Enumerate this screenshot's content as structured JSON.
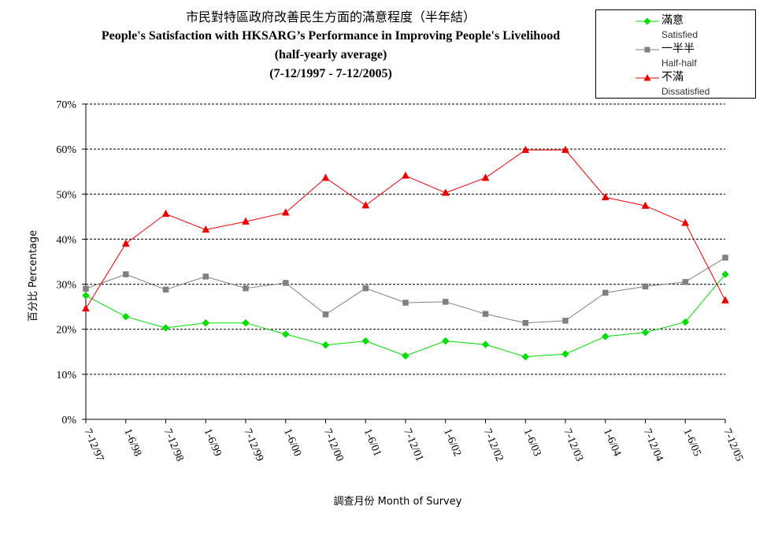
{
  "title": {
    "zh": "市民對特區政府改善民生方面的滿意程度（半年結）",
    "en_line1": "People's Satisfaction with HKSARG’s Performance in Improving People's Livelihood",
    "en_line2": "(half-yearly average)",
    "en_line3": "(7-12/1997 - 7-12/2005)"
  },
  "chart_data": {
    "type": "line",
    "categories": [
      "7-12/97",
      "1-6/98",
      "7-12/98",
      "1-6/99",
      "7-12/99",
      "1-6/00",
      "7-12/00",
      "1-6/01",
      "7-12/01",
      "1-6/02",
      "7-12/02",
      "1-6/03",
      "7-12/03",
      "1-6/04",
      "7-12/04",
      "1-6/05",
      "7-12/05"
    ],
    "series": [
      {
        "name_zh": "滿意",
        "name": "Satisfied",
        "color": "#00dd00",
        "marker": "diamond",
        "values": [
          27.5,
          22.8,
          20.3,
          21.4,
          21.4,
          18.9,
          16.5,
          17.4,
          14.1,
          17.4,
          16.6,
          13.9,
          14.5,
          18.4,
          19.3,
          21.6,
          32.2
        ]
      },
      {
        "name_zh": "一半半",
        "name": "Half-half",
        "color": "#808080",
        "marker": "square",
        "values": [
          29.0,
          32.2,
          28.8,
          31.7,
          29.1,
          30.3,
          23.3,
          29.1,
          25.9,
          26.1,
          23.4,
          21.4,
          21.9,
          28.1,
          29.5,
          30.5,
          35.9
        ]
      },
      {
        "name_zh": "不滿",
        "name": "Dissatisfied",
        "color": "#ee0000",
        "marker": "triangle",
        "values": [
          24.6,
          39.0,
          45.6,
          42.1,
          43.9,
          45.9,
          53.6,
          47.5,
          54.1,
          50.3,
          53.6,
          59.8,
          59.8,
          49.3,
          47.4,
          43.6,
          26.4
        ]
      }
    ],
    "ylim": [
      0,
      70
    ],
    "yticks": [
      0,
      10,
      20,
      30,
      40,
      50,
      60,
      70
    ],
    "ytick_labels": [
      "0%",
      "10%",
      "20%",
      "30%",
      "40%",
      "50%",
      "60%",
      "70%"
    ],
    "ylabel": "百分比 Percentage",
    "xlabel": "調查月份 Month of Survey",
    "grid": "horizontal dashed",
    "legend_position": "top-right"
  }
}
